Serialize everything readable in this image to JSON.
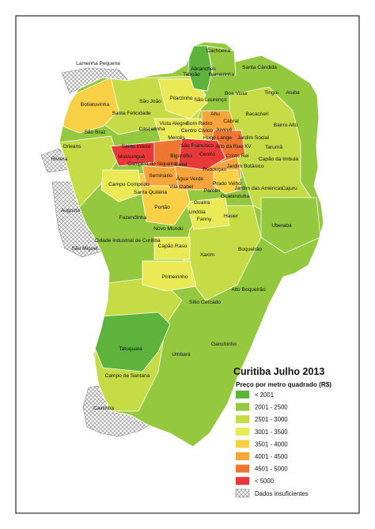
{
  "map": {
    "title": "Curitiba Julho 2013",
    "subtitle": "Preço por metro quadrado (R$)"
  },
  "legend": [
    {
      "label": "< 2001",
      "color": "#5db33b"
    },
    {
      "label": "2001 - 2500",
      "color": "#93c83f"
    },
    {
      "label": "2501 - 3000",
      "color": "#c5dc46"
    },
    {
      "label": "3001 - 3500",
      "color": "#eaea56"
    },
    {
      "label": "3501 - 4000",
      "color": "#f8d046"
    },
    {
      "label": "4001 - 4500",
      "color": "#f5a53b"
    },
    {
      "label": "4501 - 5000",
      "color": "#ef7533"
    },
    {
      "label": "< 5000",
      "color": "#e8393a"
    },
    {
      "label": "Dados insuficientes",
      "color": "hatch"
    }
  ],
  "neighborhoods": [
    {
      "name": "Cachoeira",
      "price_range": "2001 - 2500"
    },
    {
      "name": "Lamenha Pequena",
      "price_range": "Dados insuficientes"
    },
    {
      "name": "Abranches",
      "price_range": "< 2001"
    },
    {
      "name": "Taboão",
      "price_range": "2001 - 2500"
    },
    {
      "name": "Barreirinha",
      "price_range": "2001 - 2500"
    },
    {
      "name": "Santa Cândida",
      "price_range": "2001 - 2500"
    },
    {
      "name": "Botiatuvinha",
      "price_range": "3501 - 4000"
    },
    {
      "name": "São João",
      "price_range": "2501 - 3000"
    },
    {
      "name": "Pilarzinho",
      "price_range": "2501 - 3000"
    },
    {
      "name": "São Lourenço",
      "price_range": "3001 - 3500"
    },
    {
      "name": "Boa Vista",
      "price_range": "2501 - 3000"
    },
    {
      "name": "Tingui",
      "price_range": "2501 - 3000"
    },
    {
      "name": "Atuba",
      "price_range": "2001 - 2500"
    },
    {
      "name": "Santa Felicidade",
      "price_range": "2501 - 3000"
    },
    {
      "name": "Ahu",
      "price_range": "3001 - 3500"
    },
    {
      "name": "Bacacheri",
      "price_range": "2501 - 3000"
    },
    {
      "name": "Cascatinha",
      "price_range": "2501 - 3000"
    },
    {
      "name": "Vista Alegre",
      "price_range": "3001 - 3500"
    },
    {
      "name": "Bom Retiro",
      "price_range": "3001 - 3500"
    },
    {
      "name": "Cabral",
      "price_range": "4001 - 4500"
    },
    {
      "name": "São Braz",
      "price_range": "2501 - 3000"
    },
    {
      "name": "Centro Cívico",
      "price_range": "4001 - 4500"
    },
    {
      "name": "Juvevê",
      "price_range": "4501 - 5000"
    },
    {
      "name": "Bairro Alto",
      "price_range": "2001 - 2500"
    },
    {
      "name": "Mercês",
      "price_range": "3001 - 3500"
    },
    {
      "name": "Hugo Lange",
      "price_range": "3001 - 3500"
    },
    {
      "name": "Jardim Social",
      "price_range": "2501 - 3000"
    },
    {
      "name": "Orleans",
      "price_range": "2001 - 2500"
    },
    {
      "name": "São Francisco",
      "price_range": "4001 - 4500"
    },
    {
      "name": "Alto da Rua XV",
      "price_range": "4001 - 4500"
    },
    {
      "name": "Tarumã",
      "price_range": "2501 - 3000"
    },
    {
      "name": "Santo Inácio",
      "price_range": "3001 - 3500"
    },
    {
      "name": "Cristo Rei",
      "price_range": "4501 - 5000"
    },
    {
      "name": "Riviera",
      "price_range": "Dados insuficientes"
    },
    {
      "name": "Mossunguê",
      "price_range": "< 5000"
    },
    {
      "name": "Bigorrilho",
      "price_range": "4501 - 5000"
    },
    {
      "name": "Centro",
      "price_range": "< 5000"
    },
    {
      "name": "Campina do Siqueira",
      "price_range": "4501 - 5000"
    },
    {
      "name": "Batel",
      "price_range": "< 5000"
    },
    {
      "name": "Jardim Botânico",
      "price_range": "4001 - 4500"
    },
    {
      "name": "Capão da Imbuia",
      "price_range": "2501 - 3000"
    },
    {
      "name": "Rebouças",
      "price_range": "4001 - 4500"
    },
    {
      "name": "Seminário",
      "price_range": "4001 - 4500"
    },
    {
      "name": "Água Verde",
      "price_range": "4001 - 4500"
    },
    {
      "name": "Prado Velho",
      "price_range": "3501 - 4000"
    },
    {
      "name": "Campo Comprido",
      "price_range": "3001 - 3500"
    },
    {
      "name": "Vila Izabel",
      "price_range": "3501 - 4000"
    },
    {
      "name": "Jardim das Américas",
      "price_range": "2501 - 3000"
    },
    {
      "name": "Cajuru",
      "price_range": "2501 - 3000"
    },
    {
      "name": "Santa Quitéria",
      "price_range": "3501 - 4000"
    },
    {
      "name": "Parolin",
      "price_range": "3001 - 3500"
    },
    {
      "name": "Guabirotuba",
      "price_range": "3001 - 3500"
    },
    {
      "name": "Guaíra",
      "price_range": "2501 - 3000"
    },
    {
      "name": "Augusta",
      "price_range": "Dados insuficientes"
    },
    {
      "name": "Portão",
      "price_range": "3501 - 4000"
    },
    {
      "name": "Lindóia",
      "price_range": "3001 - 3500"
    },
    {
      "name": "Fazendinha",
      "price_range": "2501 - 3000"
    },
    {
      "name": "Fanny",
      "price_range": "3001 - 3500"
    },
    {
      "name": "Hauer",
      "price_range": "2501 - 3000"
    },
    {
      "name": "Uberaba",
      "price_range": "2501 - 3000"
    },
    {
      "name": "Novo Mundo",
      "price_range": "2501 - 3000"
    },
    {
      "name": "Boqueirão",
      "price_range": "2501 - 3000"
    },
    {
      "name": "Cidade Industrial de Curitiba",
      "price_range": "2001 - 2500"
    },
    {
      "name": "São Miguel",
      "price_range": "Dados insuficientes"
    },
    {
      "name": "Capão Raso",
      "price_range": "3001 - 3500"
    },
    {
      "name": "Xaxim",
      "price_range": "2501 - 3000"
    },
    {
      "name": "Pinheirinho",
      "price_range": "3001 - 3500"
    },
    {
      "name": "Alto Boqueirão",
      "price_range": "2001 - 2500"
    },
    {
      "name": "Sítio Cercado",
      "price_range": "2001 - 2500"
    },
    {
      "name": "Tatuquara",
      "price_range": "< 2001"
    },
    {
      "name": "Umbará",
      "price_range": "2001 - 2500"
    },
    {
      "name": "Ganchinho",
      "price_range": "2001 - 2500"
    },
    {
      "name": "Campo de Santana",
      "price_range": "2001 - 2500"
    },
    {
      "name": "Caximba",
      "price_range": "Dados insuficientes"
    }
  ]
}
